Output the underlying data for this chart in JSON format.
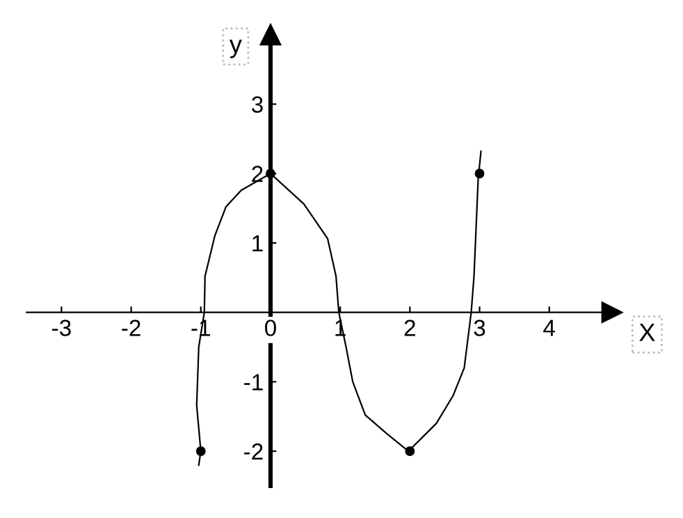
{
  "chart_data": {
    "type": "line",
    "xlabel": "X",
    "ylabel": "y",
    "xlim": [
      -3.5,
      4.9
    ],
    "ylim": [
      -2.5,
      4.0
    ],
    "xticks": [
      -3,
      -2,
      -1,
      0,
      1,
      2,
      3,
      4
    ],
    "yticks": [
      -2,
      -1,
      1,
      2,
      3
    ],
    "grid": false,
    "series": [
      {
        "type": "line",
        "color": "#000000",
        "marker": "none",
        "x": [
          -1.03,
          -1.0,
          -1.06,
          -1.03,
          -0.95,
          -0.94,
          -0.8,
          -0.64,
          -0.42,
          0,
          0.48,
          0.82,
          0.94,
          0.98,
          1.08,
          1.18,
          1.36,
          1.66,
          1.98,
          2.38,
          2.62,
          2.78,
          2.88,
          2.92,
          2.98,
          3.02
        ],
        "values": [
          -2.2,
          -2.0,
          -1.34,
          -0.5,
          0,
          0.52,
          1.1,
          1.52,
          1.76,
          2.0,
          1.56,
          1.06,
          0.52,
          0,
          -0.48,
          -1.0,
          -1.48,
          -1.74,
          -2.0,
          -1.6,
          -1.2,
          -0.8,
          0,
          0.52,
          1.92,
          2.32
        ]
      },
      {
        "type": "scatter",
        "color": "#000000",
        "marker": "circle",
        "x": [
          -1,
          0,
          2,
          3
        ],
        "values": [
          -2,
          2,
          -2,
          2
        ]
      }
    ]
  }
}
